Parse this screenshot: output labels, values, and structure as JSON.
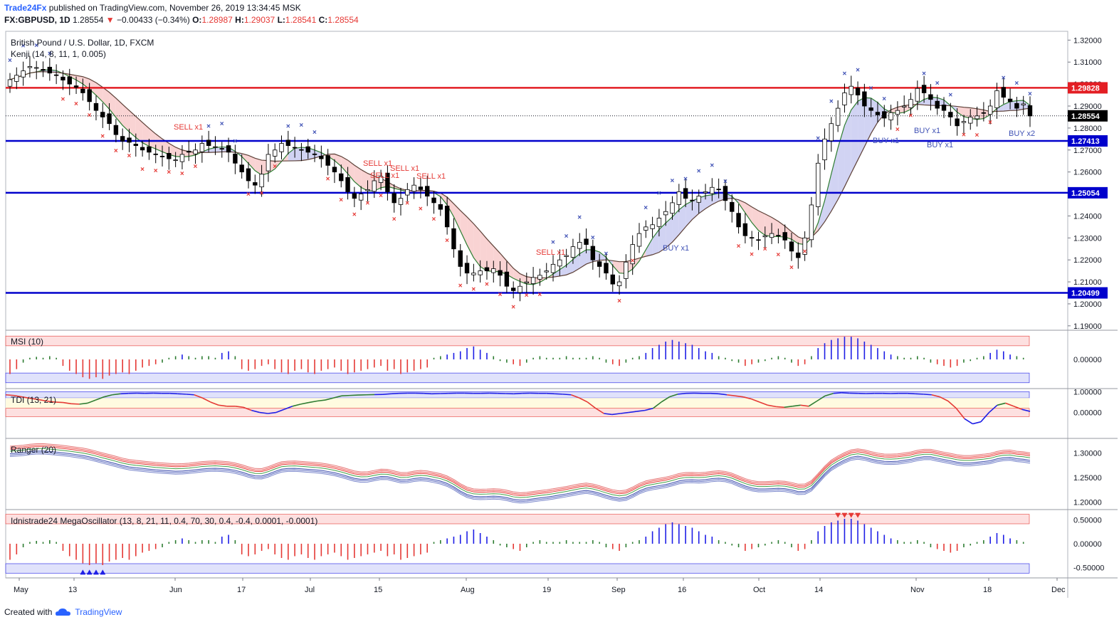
{
  "header": {
    "publisher": "Trade24Fx",
    "published_text": "published on TradingView.com, November 26, 2019 13:34:45 MSK",
    "symbol": "FX:GBPUSD, 1D",
    "last": "1.28554",
    "arrow": "▼",
    "change": "−0.00433 (−0.34%)",
    "open_label": "O:",
    "open": "1.28987",
    "high_label": "H:",
    "high": "1.29037",
    "low_label": "L:",
    "low": "1.28541",
    "close_label": "C:",
    "close": "1.28554"
  },
  "footer": {
    "created_with": "Created with",
    "brand": "TradingView"
  },
  "colors": {
    "up_candle": "#ffffff",
    "down_candle": "#000000",
    "resistance": "#e31e24",
    "support": "#0000cc",
    "sell": "#e53935",
    "buy": "#3f51b5",
    "kenji_fill_bear": "#f8c8c8",
    "kenji_fill_bull": "#c5c8f0",
    "last_price_bg": "#000000",
    "msi_up": "#1e1ee6",
    "msi_down": "#e53935",
    "msi_neutral": "#2e7d32"
  },
  "chart_data": [
    {
      "type": "candlestick",
      "title": "British Pound / U.S. Dollar, 1D, FXCM",
      "indicator_label": "Kenji (14, 8, 11, 1, 0.005)",
      "ylim": [
        1.188,
        1.324
      ],
      "yticks": [
        "1.32000",
        "1.31000",
        "1.30000",
        "1.29000",
        "1.28000",
        "1.27000",
        "1.26000",
        "1.25000",
        "1.24000",
        "1.23000",
        "1.22000",
        "1.21000",
        "1.20000",
        "1.19000"
      ],
      "xticks": [
        "May",
        "13",
        "Jun",
        "17",
        "Jul",
        "15",
        "Aug",
        "19",
        "Sep",
        "16",
        "Oct",
        "14",
        "Nov",
        "18",
        "Dec"
      ],
      "horizontal_levels": [
        {
          "value": 1.29828,
          "label": "1.29828",
          "kind": "resistance"
        },
        {
          "value": 1.27413,
          "label": "1.27413",
          "kind": "support"
        },
        {
          "value": 1.25054,
          "label": "1.25054",
          "kind": "support"
        },
        {
          "value": 1.20499,
          "label": "1.20499",
          "kind": "support"
        }
      ],
      "last_price": {
        "value": 1.28554,
        "label": "1.28554"
      },
      "closes": [
        1.302,
        1.304,
        1.306,
        1.308,
        1.3075,
        1.3062,
        1.305,
        1.304,
        1.3018,
        1.3,
        1.2985,
        1.296,
        1.292,
        1.288,
        1.285,
        1.282,
        1.277,
        1.274,
        1.2735,
        1.272,
        1.27,
        1.269,
        1.268,
        1.267,
        1.266,
        1.2655,
        1.268,
        1.269,
        1.27,
        1.273,
        1.272,
        1.2715,
        1.2705,
        1.269,
        1.264,
        1.26,
        1.256,
        1.254,
        1.259,
        1.268,
        1.27,
        1.273,
        1.272,
        1.271,
        1.27,
        1.269,
        1.268,
        1.266,
        1.263,
        1.26,
        1.256,
        1.251,
        1.248,
        1.25,
        1.252,
        1.256,
        1.258,
        1.251,
        1.246,
        1.248,
        1.252,
        1.254,
        1.252,
        1.249,
        1.246,
        1.243,
        1.235,
        1.225,
        1.217,
        1.214,
        1.214,
        1.215,
        1.215,
        1.216,
        1.213,
        1.208,
        1.206,
        1.208,
        1.21,
        1.212,
        1.213,
        1.215,
        1.218,
        1.22,
        1.222,
        1.226,
        1.228,
        1.227,
        1.22,
        1.217,
        1.214,
        1.209,
        1.21,
        1.219,
        1.227,
        1.232,
        1.235,
        1.236,
        1.239,
        1.242,
        1.246,
        1.251,
        1.248,
        1.247,
        1.249,
        1.251,
        1.253,
        1.252,
        1.247,
        1.242,
        1.235,
        1.231,
        1.23,
        1.229,
        1.231,
        1.232,
        1.231,
        1.229,
        1.224,
        1.221,
        1.23,
        1.245,
        1.264,
        1.275,
        1.282,
        1.289,
        1.296,
        1.299,
        1.295,
        1.29,
        1.288,
        1.286,
        1.2845,
        1.287,
        1.288,
        1.29,
        1.293,
        1.298,
        1.296,
        1.293,
        1.289,
        1.288,
        1.285,
        1.281,
        1.283,
        1.285,
        1.2855,
        1.287,
        1.29,
        1.297,
        1.294,
        1.292,
        1.289,
        1.291,
        1.2855
      ],
      "msi_10": {
        "ylim": [
          -0.9,
          0.9
        ],
        "yticks": [
          "0.00000"
        ],
        "values": [
          -0.45,
          -0.3,
          -0.1,
          0.05,
          0.08,
          0.05,
          0.1,
          0.05,
          -0.2,
          -0.35,
          -0.45,
          -0.55,
          -0.6,
          -0.55,
          -0.6,
          -0.5,
          -0.45,
          -0.4,
          -0.45,
          -0.35,
          -0.25,
          -0.2,
          -0.15,
          -0.1,
          0.05,
          0.1,
          0.15,
          0.1,
          0.05,
          0.1,
          0.1,
          0.05,
          0.2,
          0.25,
          0.1,
          -0.3,
          -0.35,
          -0.3,
          -0.2,
          -0.15,
          -0.3,
          -0.4,
          -0.45,
          -0.35,
          -0.3,
          -0.4,
          -0.45,
          -0.35,
          -0.3,
          -0.25,
          -0.35,
          -0.45,
          -0.4,
          -0.35,
          -0.3,
          -0.25,
          -0.2,
          -0.35,
          -0.3,
          -0.45,
          -0.4,
          -0.35,
          -0.3,
          -0.25,
          0.05,
          0.1,
          0.15,
          0.2,
          0.25,
          0.35,
          0.4,
          0.3,
          0.2,
          0.1,
          -0.05,
          -0.1,
          -0.15,
          -0.2,
          -0.1,
          0.05,
          0.1,
          0.05,
          0.05,
          0.05,
          0.1,
          0.05,
          0.05,
          0.05,
          0.1,
          0.05,
          -0.1,
          -0.15,
          -0.2,
          -0.1,
          0.05,
          0.1,
          0.2,
          0.35,
          0.45,
          0.55,
          0.6,
          0.55,
          0.5,
          0.45,
          0.35,
          0.25,
          0.2,
          0.1,
          0.05,
          -0.05,
          -0.1,
          -0.2,
          -0.15,
          -0.1,
          -0.05,
          0.05,
          0.1,
          0.05,
          -0.1,
          -0.2,
          -0.15,
          0.1,
          0.35,
          0.5,
          0.6,
          0.65,
          0.7,
          0.7,
          0.65,
          0.55,
          0.45,
          0.35,
          0.25,
          0.15,
          0.1,
          0.05,
          0.05,
          0.1,
          0.05,
          -0.1,
          -0.15,
          -0.2,
          -0.25,
          -0.2,
          -0.1,
          -0.05,
          0.05,
          0.1,
          0.2,
          0.3,
          0.25,
          0.15,
          0.1,
          0.05
        ]
      },
      "tdi_13_21": {
        "ylim": [
          -1.25,
          1.15
        ],
        "yticks": [
          "1.00000",
          "0.00000"
        ],
        "values": [
          0.85,
          0.82,
          0.75,
          0.68,
          0.62,
          0.55,
          0.5,
          0.48,
          0.42,
          0.4,
          0.45,
          0.6,
          0.75,
          0.85,
          0.9,
          0.92,
          0.93,
          0.92,
          0.93,
          0.92,
          0.92,
          0.9,
          0.88,
          0.85,
          0.7,
          0.5,
          0.35,
          0.3,
          0.3,
          0.25,
          0.1,
          0.0,
          -0.05,
          0.0,
          0.15,
          0.3,
          0.4,
          0.48,
          0.55,
          0.6,
          0.7,
          0.8,
          0.82,
          0.84,
          0.85,
          0.86,
          0.87,
          0.9,
          0.92,
          0.93,
          0.93,
          0.92,
          0.9,
          0.91,
          0.92,
          0.93,
          0.93,
          0.92,
          0.92,
          0.93,
          0.92,
          0.91,
          0.9,
          0.92,
          0.93,
          0.92,
          0.92,
          0.9,
          0.88,
          0.85,
          0.7,
          0.5,
          0.2,
          -0.05,
          -0.1,
          -0.05,
          0.0,
          0.05,
          0.1,
          0.2,
          0.5,
          0.75,
          0.88,
          0.92,
          0.93,
          0.92,
          0.92,
          0.9,
          0.85,
          0.8,
          0.75,
          0.65,
          0.5,
          0.35,
          0.28,
          0.25,
          0.3,
          0.35,
          0.3,
          0.55,
          0.8,
          0.92,
          0.95,
          0.93,
          0.92,
          0.91,
          0.92,
          0.92,
          0.91,
          0.92,
          0.92,
          0.9,
          0.88,
          0.85,
          0.75,
          0.55,
          0.2,
          -0.3,
          -0.55,
          -0.45,
          0.0,
          0.35,
          0.45,
          0.3,
          0.15,
          0.05
        ]
      },
      "ranger_20": {
        "ylim": [
          1.185,
          1.33
        ],
        "yticks": [
          "1.30000",
          "1.25000",
          "1.20000"
        ]
      },
      "mega_oscillator": {
        "label": "Idnistrade24 MegaOscillator (13, 8, 21, 11, 0.4, 70, 30, 0.4, -0.4, 0.0001, -0.0001)",
        "ylim": [
          -0.72,
          0.72
        ],
        "yticks": [
          "0.50000",
          "0.00000",
          "-0.50000"
        ]
      }
    }
  ],
  "annotations": {
    "sell_labels": [
      "SELL x1",
      "SELL x1",
      "SELL x1",
      "SELL x1",
      "SELL x1",
      "SELL x1"
    ],
    "buy_labels": [
      "BUY x1",
      "BUY x1",
      "BUY x1",
      "BUY x1",
      "BUY x2"
    ],
    "panel_labels": [
      "MSI (10)",
      "TDI (13, 21)",
      "Ranger (20)"
    ]
  }
}
